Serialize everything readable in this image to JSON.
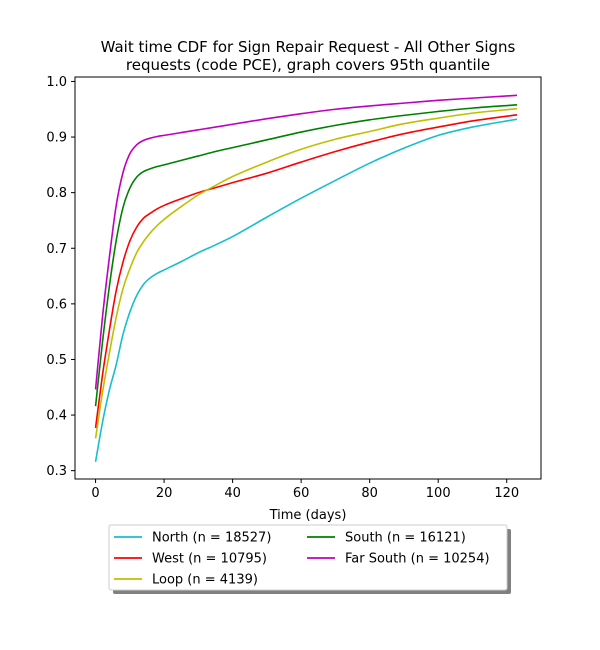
{
  "chart_data": {
    "type": "line",
    "title": "Wait time CDF for Sign Repair Request - All Other Signs requests (code PCE), graph covers 95th quantile",
    "title_lines": [
      "Wait time CDF for Sign Repair Request - All Other Signs",
      "requests (code PCE), graph covers 95th quantile"
    ],
    "xlabel": "Time (days)",
    "ylabel": "",
    "xlim": [
      -6,
      130
    ],
    "ylim": [
      0.285,
      1.008
    ],
    "xticks": [
      0,
      20,
      40,
      60,
      80,
      100,
      120
    ],
    "yticks": [
      0.3,
      0.4,
      0.5,
      0.6,
      0.7,
      0.8,
      0.9,
      1.0
    ],
    "ytick_labels": [
      "0.3",
      "0.4",
      "0.5",
      "0.6",
      "0.7",
      "0.8",
      "0.9",
      "1.0"
    ],
    "grid": false,
    "legend": {
      "placement": "below-center",
      "columns": 2,
      "shadow": true
    },
    "series": [
      {
        "name": "North (n = 18527)",
        "color": "#17becf",
        "x": [
          0,
          2,
          4,
          6,
          8,
          10,
          12,
          14,
          16,
          18,
          20,
          25,
          30,
          35,
          40,
          50,
          60,
          70,
          80,
          90,
          100,
          110,
          123
        ],
        "y": [
          0.316,
          0.386,
          0.444,
          0.49,
          0.545,
          0.585,
          0.615,
          0.635,
          0.647,
          0.655,
          0.661,
          0.676,
          0.692,
          0.706,
          0.721,
          0.756,
          0.79,
          0.822,
          0.853,
          0.88,
          0.903,
          0.918,
          0.932
        ]
      },
      {
        "name": "West (n = 10795)",
        "color": "#ff0000",
        "x": [
          0,
          2,
          4,
          6,
          8,
          10,
          12,
          14,
          16,
          18,
          20,
          25,
          30,
          35,
          40,
          50,
          60,
          70,
          80,
          90,
          100,
          110,
          123
        ],
        "y": [
          0.377,
          0.471,
          0.551,
          0.623,
          0.675,
          0.713,
          0.738,
          0.754,
          0.763,
          0.771,
          0.777,
          0.789,
          0.8,
          0.809,
          0.818,
          0.835,
          0.855,
          0.874,
          0.891,
          0.906,
          0.918,
          0.929,
          0.94
        ]
      },
      {
        "name": "Loop (n = 4139)",
        "color": "#bfbf00",
        "x": [
          0,
          2,
          4,
          6,
          8,
          10,
          12,
          14,
          16,
          18,
          20,
          25,
          30,
          35,
          40,
          50,
          60,
          70,
          80,
          90,
          100,
          110,
          123
        ],
        "y": [
          0.358,
          0.44,
          0.51,
          0.575,
          0.627,
          0.663,
          0.692,
          0.712,
          0.728,
          0.741,
          0.752,
          0.775,
          0.796,
          0.813,
          0.829,
          0.855,
          0.878,
          0.896,
          0.91,
          0.924,
          0.934,
          0.943,
          0.951
        ]
      },
      {
        "name": "South (n = 16121)",
        "color": "#008000",
        "x": [
          0,
          2,
          4,
          6,
          8,
          10,
          12,
          14,
          16,
          18,
          20,
          25,
          30,
          35,
          40,
          50,
          60,
          70,
          80,
          90,
          100,
          110,
          123
        ],
        "y": [
          0.416,
          0.53,
          0.63,
          0.713,
          0.773,
          0.808,
          0.828,
          0.838,
          0.843,
          0.847,
          0.85,
          0.858,
          0.866,
          0.874,
          0.881,
          0.895,
          0.909,
          0.921,
          0.931,
          0.939,
          0.946,
          0.952,
          0.958
        ]
      },
      {
        "name": "Far South (n = 10254)",
        "color": "#bf00bf",
        "x": [
          0,
          2,
          4,
          6,
          8,
          10,
          12,
          14,
          16,
          18,
          20,
          25,
          30,
          35,
          40,
          50,
          60,
          70,
          80,
          90,
          100,
          110,
          123
        ],
        "y": [
          0.446,
          0.575,
          0.682,
          0.776,
          0.836,
          0.87,
          0.886,
          0.894,
          0.898,
          0.901,
          0.903,
          0.908,
          0.913,
          0.918,
          0.923,
          0.933,
          0.942,
          0.95,
          0.956,
          0.961,
          0.966,
          0.97,
          0.975
        ]
      }
    ]
  }
}
